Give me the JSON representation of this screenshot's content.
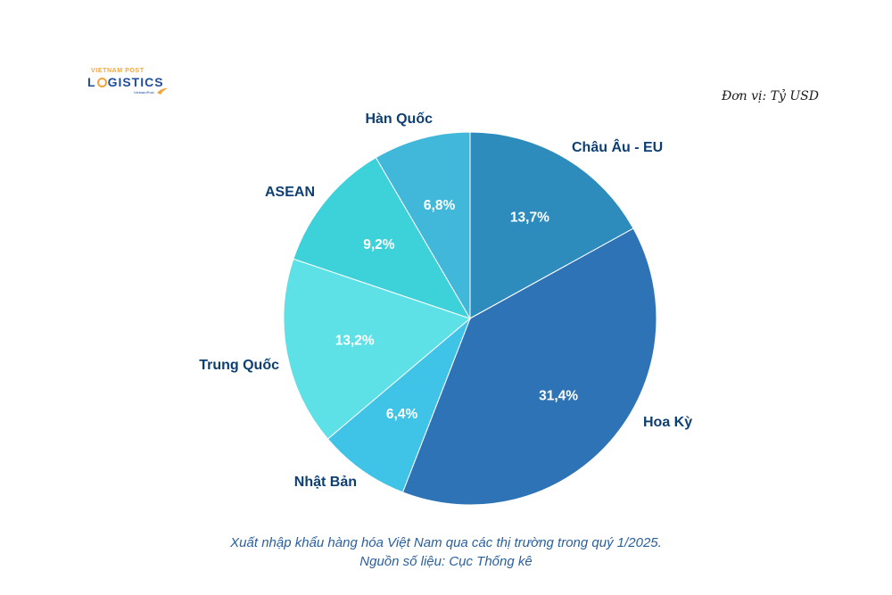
{
  "logo": {
    "top_text": "VIETNAM POST",
    "main_text_pre": "L",
    "main_text_post": "GISTICS",
    "sub_text": "VietnamPost"
  },
  "unit_label": "Đơn vị: Tỷ USD",
  "caption": {
    "line1": "Xuất nhập khẩu hàng hóa Việt Nam qua các thị trường trong quý 1/2025.",
    "line2": "Nguồn số liệu: Cục Thống kê"
  },
  "chart_data": {
    "type": "pie",
    "start_angle_deg": 0,
    "direction": "clockwise",
    "slices": [
      {
        "label": "Châu Âu - EU",
        "value": 13.7,
        "display": "13,7%",
        "color": "#2e8cbd"
      },
      {
        "label": "Hoa Kỳ",
        "value": 31.4,
        "display": "31,4%",
        "color": "#2e73b6"
      },
      {
        "label": "Nhật Bản",
        "value": 6.4,
        "display": "6,4%",
        "color": "#3fc3e6"
      },
      {
        "label": "Trung Quốc",
        "value": 13.2,
        "display": "13,2%",
        "color": "#5ee1e6"
      },
      {
        "label": "ASEAN",
        "value": 9.2,
        "display": "9,2%",
        "color": "#3dd1da"
      },
      {
        "label": "Hàn Quốc",
        "value": 6.8,
        "display": "6,8%",
        "color": "#41b7d9"
      }
    ]
  }
}
